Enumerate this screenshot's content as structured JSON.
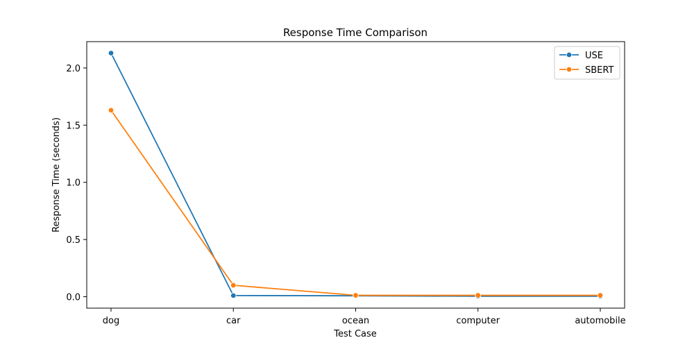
{
  "chart_data": {
    "type": "line",
    "title": "Response Time Comparison",
    "xlabel": "Test Case",
    "ylabel": "Response Time (seconds)",
    "categories": [
      "dog",
      "car",
      "ocean",
      "computer",
      "automobile"
    ],
    "series": [
      {
        "name": "USE",
        "color": "#1f77b4",
        "values": [
          2.13,
          0.01,
          0.008,
          0.004,
          0.004
        ]
      },
      {
        "name": "SBERT",
        "color": "#ff7f0e",
        "values": [
          1.63,
          0.1,
          0.012,
          0.012,
          0.012
        ]
      }
    ],
    "ylim": [
      -0.1,
      2.23
    ],
    "yticks": [
      0.0,
      0.5,
      1.0,
      1.5,
      2.0
    ],
    "ytick_labels": [
      "0.0",
      "0.5",
      "1.0",
      "1.5",
      "2.0"
    ],
    "grid": false,
    "legend_position": "top-right",
    "marker": "circle"
  }
}
